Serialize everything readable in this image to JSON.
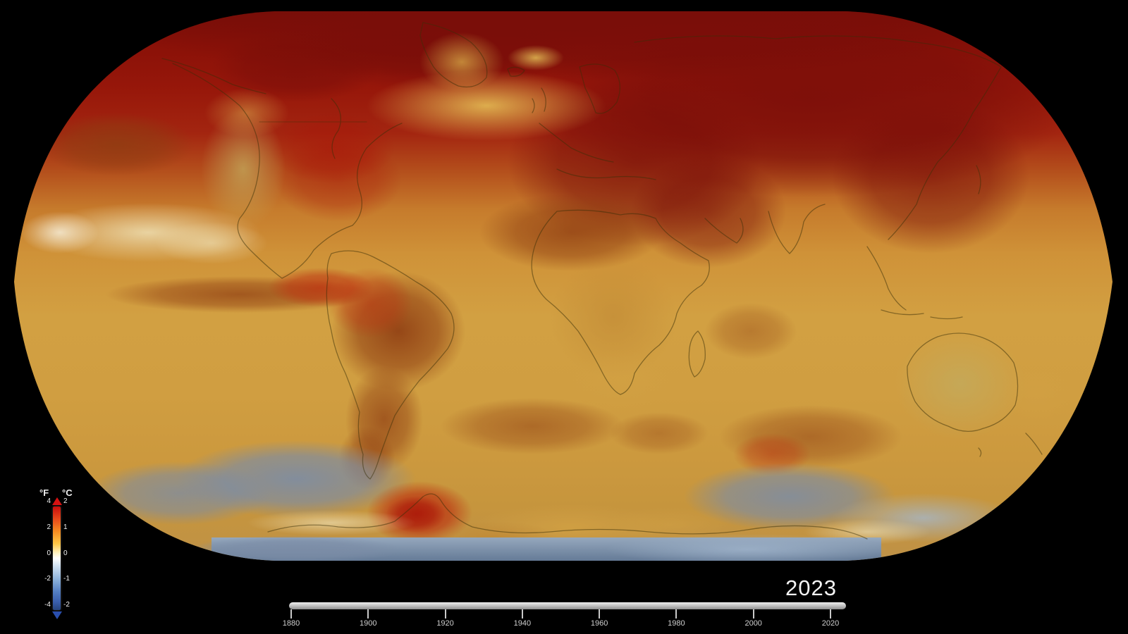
{
  "scene": {
    "description": "Global surface temperature anomaly world map",
    "background": "#000000"
  },
  "year_display": {
    "value": "2023"
  },
  "legend": {
    "unit_f": "°F",
    "unit_c": "°C",
    "ticks": [
      {
        "f": "4",
        "c": "2"
      },
      {
        "f": "2",
        "c": "1"
      },
      {
        "f": "0",
        "c": "0"
      },
      {
        "f": "-2",
        "c": "-1"
      },
      {
        "f": "-4",
        "c": "-2"
      }
    ],
    "gradient": [
      "#c90d0d 0%",
      "#e8481a 12%",
      "#f68c22 24%",
      "#ffc847 36%",
      "#fff3c4 45%",
      "#ffffff 50%",
      "#cfe0f2 58%",
      "#8fb4dc 70%",
      "#5580c4 82%",
      "#3a5fae 92%",
      "#27447e 100%"
    ],
    "arrow_up_color": "#d81212",
    "arrow_down_color": "#2a4fae"
  },
  "timeline": {
    "years": [
      "1880",
      "1900",
      "1920",
      "1940",
      "1960",
      "1980",
      "2000",
      "2020"
    ],
    "track_color": "#c6c6c6",
    "tick_color": "#c9c9c9",
    "label_color": "#cfcfcf"
  },
  "map_palette": {
    "deep_red": "#7a0e09",
    "red": "#a81408",
    "brick_red": "#bb2f10",
    "brown_red": "#8f3d12",
    "amber": "#c08834",
    "gold": "#d2a143",
    "yellow": "#e8c558",
    "cream": "#eee0b4",
    "pale_white": "#f7f0dc",
    "khaki": "#c3aa5c",
    "blue_gray": "#7b8ca6",
    "light_blue": "#a4b8cf",
    "antarctic_strip": "#6d84a4",
    "outline": "#3a2f08"
  }
}
